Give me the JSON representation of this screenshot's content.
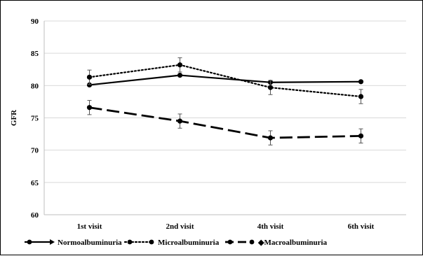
{
  "chart_data": {
    "type": "line",
    "title": "",
    "xlabel": "",
    "ylabel": "GFR",
    "categories": [
      "1st visit",
      "2nd visit",
      "4th visit",
      "6th visit"
    ],
    "ylim": [
      60,
      90
    ],
    "yticks": [
      60,
      65,
      70,
      75,
      80,
      85,
      90
    ],
    "grid": "horizontal",
    "legend_position": "bottom",
    "series": [
      {
        "name": "Normoalbuminuria",
        "legend_label": "Normoalbuminuria",
        "values": [
          80.1,
          81.6,
          80.5,
          80.6
        ],
        "error": [
          0,
          0,
          0,
          0
        ],
        "dash": "solid",
        "color": "#000000"
      },
      {
        "name": "Microalbuminuria",
        "legend_label": "Microalbuminuria",
        "values": [
          81.3,
          83.2,
          79.7,
          78.3
        ],
        "error": [
          1.1,
          1.1,
          1.1,
          1.1
        ],
        "dash": "dotted",
        "color": "#000000"
      },
      {
        "name": "Macroalbuminuria",
        "legend_label": "◆Macroalbuminuria",
        "values": [
          76.6,
          74.5,
          71.9,
          72.2
        ],
        "error": [
          1.1,
          1.1,
          1.1,
          1.1
        ],
        "dash": "dashed",
        "color": "#000000"
      }
    ]
  }
}
